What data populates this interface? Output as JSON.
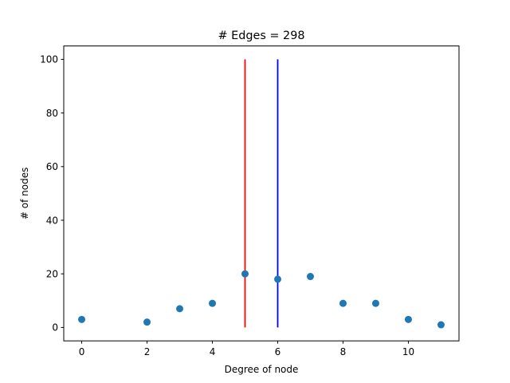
{
  "chart_data": {
    "type": "scatter",
    "title": "# Edges = 298",
    "xlabel": "Degree of node",
    "ylabel": "# of nodes",
    "xlim": [
      -0.55,
      11.55
    ],
    "ylim": [
      -5,
      105
    ],
    "xticks": [
      0,
      2,
      4,
      6,
      8,
      10
    ],
    "yticks": [
      0,
      20,
      40,
      60,
      80,
      100
    ],
    "grid": false,
    "series": [
      {
        "color": "#1f77b4",
        "points": [
          {
            "x": 0,
            "y": 3
          },
          {
            "x": 2,
            "y": 2
          },
          {
            "x": 3,
            "y": 7
          },
          {
            "x": 4,
            "y": 9
          },
          {
            "x": 5,
            "y": 20
          },
          {
            "x": 6,
            "y": 18
          },
          {
            "x": 7,
            "y": 19
          },
          {
            "x": 8,
            "y": 9
          },
          {
            "x": 9,
            "y": 9
          },
          {
            "x": 10,
            "y": 3
          },
          {
            "x": 11,
            "y": 1
          }
        ]
      }
    ],
    "vlines": [
      {
        "x": 5,
        "y_from": 0,
        "y_to": 100,
        "color": "#ff0000"
      },
      {
        "x": 6,
        "y_from": 0,
        "y_to": 100,
        "color": "#0000ff"
      }
    ]
  }
}
